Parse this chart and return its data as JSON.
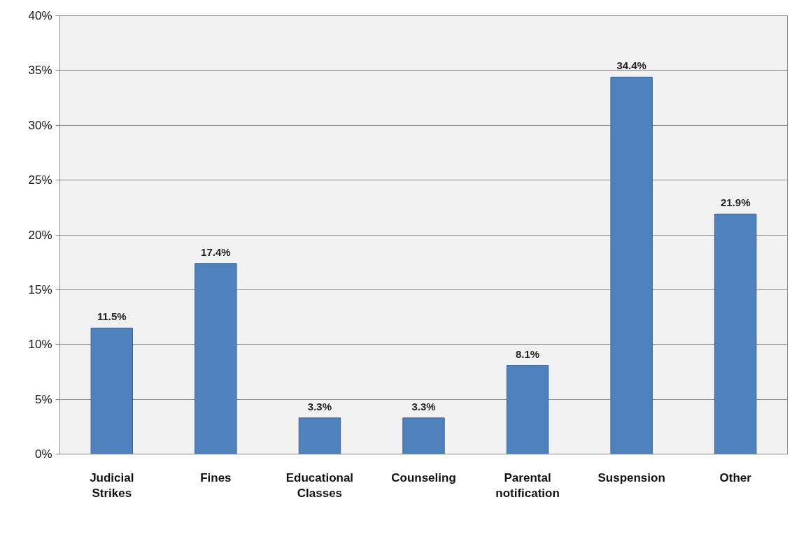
{
  "chart_data": {
    "type": "bar",
    "categories": [
      "Judicial Strikes",
      "Fines",
      "Educational Classes",
      "Counseling",
      "Parental notification",
      "Suspension",
      "Other"
    ],
    "values": [
      11.5,
      17.4,
      3.3,
      3.3,
      8.1,
      34.4,
      21.9
    ],
    "value_labels": [
      "11.5%",
      "17.4%",
      "3.3%",
      "3.3%",
      "8.1%",
      "34.4%",
      "21.9%"
    ],
    "color": "#4f81bd",
    "ylim": [
      0,
      40
    ],
    "yticks": [
      {
        "value": 0,
        "label": "0%"
      },
      {
        "value": 5,
        "label": "5%"
      },
      {
        "value": 10,
        "label": "10%"
      },
      {
        "value": 15,
        "label": "15%"
      },
      {
        "value": 20,
        "label": "20%"
      },
      {
        "value": 25,
        "label": "25%"
      },
      {
        "value": 30,
        "label": "30%"
      },
      {
        "value": 35,
        "label": "35%"
      },
      {
        "value": 40,
        "label": "40%"
      }
    ],
    "grid": "y"
  }
}
